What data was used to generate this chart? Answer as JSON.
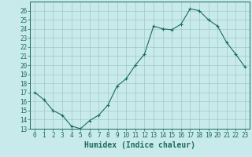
{
  "x": [
    0,
    1,
    2,
    3,
    4,
    5,
    6,
    7,
    8,
    9,
    10,
    11,
    12,
    13,
    14,
    15,
    16,
    17,
    18,
    19,
    20,
    21,
    22,
    23
  ],
  "y": [
    17,
    16.2,
    15,
    14.5,
    13.3,
    13,
    13.9,
    14.5,
    15.6,
    17.7,
    18.5,
    20,
    21.2,
    24.3,
    24,
    23.9,
    24.5,
    26.2,
    26,
    25,
    24.3,
    22.5,
    21.2,
    19.8
  ],
  "line_color": "#1a6b5a",
  "marker": "+",
  "marker_size": 3,
  "marker_linewidth": 0.8,
  "bg_color": "#c8eaea",
  "grid_color": "#a0c8c8",
  "xlabel": "Humidex (Indice chaleur)",
  "xlabel_fontsize": 7,
  "ylim": [
    13,
    27
  ],
  "xlim": [
    -0.5,
    23.5
  ],
  "yticks": [
    13,
    14,
    15,
    16,
    17,
    18,
    19,
    20,
    21,
    22,
    23,
    24,
    25,
    26
  ],
  "xticks": [
    0,
    1,
    2,
    3,
    4,
    5,
    6,
    7,
    8,
    9,
    10,
    11,
    12,
    13,
    14,
    15,
    16,
    17,
    18,
    19,
    20,
    21,
    22,
    23
  ],
  "tick_fontsize": 5.5,
  "line_width": 0.8
}
